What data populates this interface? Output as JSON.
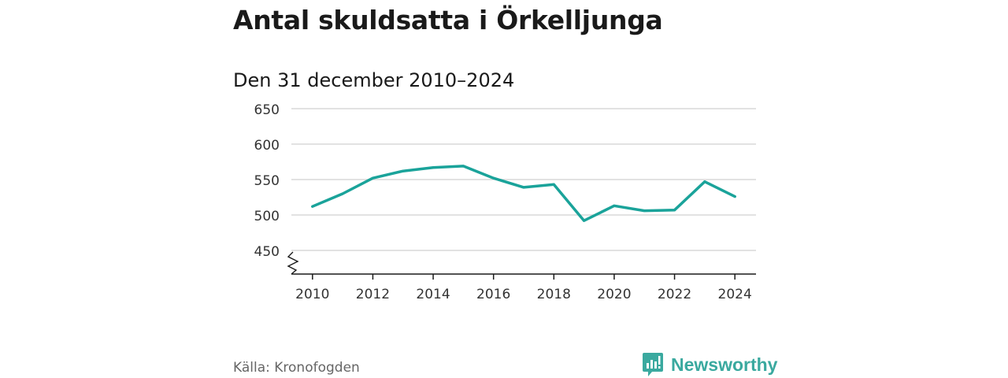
{
  "title": "Antal skuldsatta i Örkelljunga",
  "subtitle": "Den 31 december 2010–2024",
  "source": "Källa: Kronofogden",
  "brand": {
    "name": "Newsworthy",
    "icon": "newsworthy-logo-icon",
    "color": "#3aa99f"
  },
  "colors": {
    "line": "#1aa39a",
    "grid": "#d9d9d9",
    "axis": "#1a1a1a"
  },
  "chart_data": {
    "type": "line",
    "title": "Antal skuldsatta i Örkelljunga",
    "subtitle": "Den 31 december 2010–2024",
    "xlabel": "",
    "ylabel": "",
    "x": [
      2010,
      2011,
      2012,
      2013,
      2014,
      2015,
      2016,
      2017,
      2018,
      2019,
      2020,
      2021,
      2022,
      2023,
      2024
    ],
    "values": [
      512,
      530,
      552,
      562,
      567,
      569,
      552,
      539,
      543,
      492,
      513,
      506,
      507,
      547,
      526
    ],
    "xticks": [
      "2010",
      "2012",
      "2014",
      "2016",
      "2018",
      "2020",
      "2022",
      "2024"
    ],
    "yticks": [
      "450",
      "500",
      "550",
      "600",
      "650"
    ],
    "ylim": [
      420,
      650
    ],
    "xlim": [
      2009.3,
      2024.7
    ],
    "grid": true,
    "legend": "none",
    "axis_break": true
  }
}
